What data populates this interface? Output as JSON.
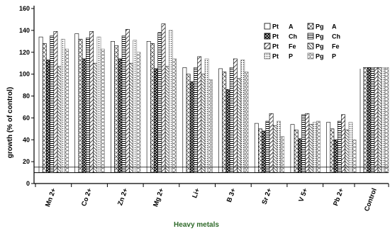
{
  "chart_data": {
    "type": "bar",
    "ylabel": "growth (% of control)",
    "xlabel": "Heavy metals",
    "ylim": [
      0,
      160
    ],
    "yticks": [
      "0",
      "20",
      "40",
      "60",
      "80",
      "100",
      "120",
      "140",
      "160"
    ],
    "categories": [
      "Mn 2+",
      "Co 2+",
      "Zn 2+",
      "Mg 2+",
      "Li+",
      "B 3+",
      "Sr 2+",
      "V 5+",
      "Pb 2+",
      "Control"
    ],
    "legend": [
      {
        "prefix": "Pt",
        "suffix": "A"
      },
      {
        "prefix": "Pg",
        "suffix": "A"
      },
      {
        "prefix": "Pt",
        "suffix": "Ch"
      },
      {
        "prefix": "Pg",
        "suffix": "Ch"
      },
      {
        "prefix": "Pt",
        "suffix": "Fe"
      },
      {
        "prefix": "Pg",
        "suffix": "Fe"
      },
      {
        "prefix": "Pt",
        "suffix": "P"
      },
      {
        "prefix": "Pg",
        "suffix": "P"
      }
    ],
    "series": [
      {
        "name": "Pt A",
        "values": [
          134,
          137,
          130,
          130,
          106,
          105,
          55,
          54,
          56,
          106
        ]
      },
      {
        "name": "Pt Ch",
        "values": [
          128,
          132,
          126,
          128,
          100,
          102,
          50,
          49,
          50,
          106
        ]
      },
      {
        "name": "Pt Fe",
        "values": [
          113,
          114,
          114,
          105,
          93,
          86,
          48,
          41,
          40,
          106
        ]
      },
      {
        "name": "Pt P",
        "values": [
          135,
          133,
          135,
          138,
          106,
          106,
          57,
          63,
          57,
          106
        ]
      },
      {
        "name": "Pg A",
        "values": [
          139,
          139,
          141,
          146,
          116,
          114,
          64,
          64,
          63,
          106
        ]
      },
      {
        "name": "Pg Ch",
        "values": [
          107,
          110,
          110,
          107,
          100,
          96,
          53,
          54,
          49,
          106
        ]
      },
      {
        "name": "Pg Fe",
        "values": [
          132,
          134,
          131,
          140,
          114,
          113,
          57,
          56,
          56,
          106
        ]
      },
      {
        "name": "Pg P",
        "values": [
          123,
          123,
          120,
          114,
          95,
          102,
          43,
          57,
          40,
          106
        ]
      }
    ]
  }
}
